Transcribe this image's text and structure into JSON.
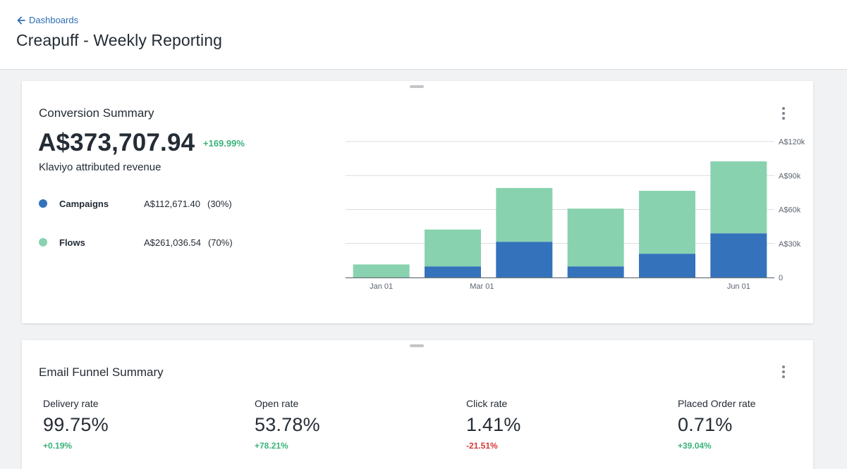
{
  "header": {
    "back_label": "Dashboards",
    "title": "Creapuff - Weekly Reporting"
  },
  "conversion": {
    "title": "Conversion Summary",
    "total": "A$373,707.94",
    "delta": "+169.99%",
    "subtitle": "Klaviyo attributed revenue",
    "legend": [
      {
        "name": "Campaigns",
        "amount": "A$112,671.40",
        "pct": "(30%)",
        "color": "#3472bc"
      },
      {
        "name": "Flows",
        "amount": "A$261,036.54",
        "pct": "(70%)",
        "color": "#89d2b0"
      }
    ]
  },
  "chart_data": {
    "type": "bar",
    "stacked": true,
    "x_tick_labels": [
      "Jan 01",
      "Mar 01",
      "Jun 01"
    ],
    "x_tick_positions": [
      0,
      2,
      5
    ],
    "y_tick_labels": [
      "0",
      "A$30k",
      "A$60k",
      "A$90k",
      "A$120k"
    ],
    "ylim": [
      0,
      120000
    ],
    "y_axis_position": "right",
    "grid": true,
    "series": [
      {
        "name": "Campaigns",
        "color": "#3472bc",
        "values": [
          0,
          9800,
          31500,
          9800,
          21000,
          39000
        ]
      },
      {
        "name": "Flows",
        "color": "#89d2b0",
        "values": [
          11500,
          32500,
          47500,
          51000,
          55500,
          63500
        ]
      }
    ]
  },
  "funnel": {
    "title": "Email Funnel Summary",
    "metrics": [
      {
        "label": "Delivery rate",
        "value": "99.75%",
        "delta": "+0.19%",
        "trend": "pos"
      },
      {
        "label": "Open rate",
        "value": "53.78%",
        "delta": "+78.21%",
        "trend": "pos"
      },
      {
        "label": "Click rate",
        "value": "1.41%",
        "delta": "-21.51%",
        "trend": "neg"
      },
      {
        "label": "Placed Order rate",
        "value": "0.71%",
        "delta": "+39.04%",
        "trend": "pos"
      }
    ]
  }
}
